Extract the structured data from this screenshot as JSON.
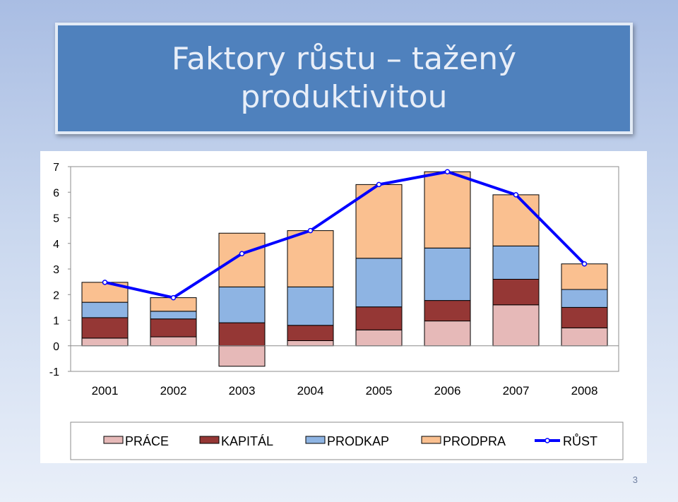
{
  "slide": {
    "title": "Faktory růstu – tažený produktivitou",
    "page_number": "3"
  },
  "colors": {
    "title_bg": "#4f81bd",
    "title_text": "#e8eef8",
    "PRÁCE": "#e6b9b8",
    "KAPITÁL": "#953735",
    "PRODKAP": "#8eb4e3",
    "PRODPRA": "#fac090",
    "RŮST": "#0000ff"
  },
  "chart_data": {
    "type": "bar",
    "stacked": true,
    "categories": [
      "2001",
      "2002",
      "2003",
      "2004",
      "2005",
      "2006",
      "2007",
      "2008"
    ],
    "series": [
      {
        "name": "PRÁCE",
        "kind": "bar",
        "values": [
          0.3,
          0.35,
          -0.8,
          0.2,
          0.62,
          0.97,
          1.6,
          0.7
        ]
      },
      {
        "name": "KAPITÁL",
        "kind": "bar",
        "values": [
          0.8,
          0.7,
          0.9,
          0.6,
          0.9,
          0.8,
          1.0,
          0.8
        ]
      },
      {
        "name": "PRODKAP",
        "kind": "bar",
        "values": [
          0.6,
          0.3,
          1.4,
          1.5,
          1.9,
          2.05,
          1.3,
          0.7
        ]
      },
      {
        "name": "PRODPRA",
        "kind": "bar",
        "values": [
          0.78,
          0.53,
          2.1,
          2.2,
          2.88,
          2.98,
          2.0,
          1.0
        ]
      },
      {
        "name": "RŮST",
        "kind": "line",
        "values": [
          2.48,
          1.88,
          3.6,
          4.5,
          6.3,
          6.8,
          5.9,
          3.2
        ]
      }
    ],
    "ylim": [
      -1,
      7
    ],
    "yticks": [
      "7",
      "6",
      "5",
      "4",
      "3",
      "2",
      "1",
      "0",
      "-1"
    ],
    "legend_position": "bottom",
    "grid": false
  }
}
